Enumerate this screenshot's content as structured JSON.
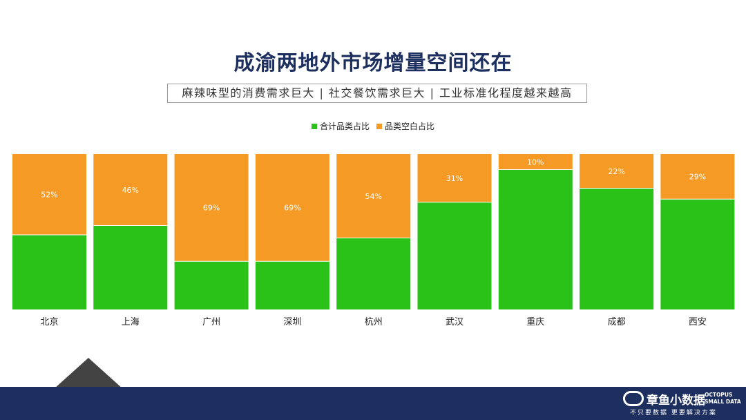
{
  "title": "成渝两地外市场增量空间还在",
  "subtitle": "麻辣味型的消费需求巨大 | 社交餐饮需求巨大 | 工业标准化程度越来越高",
  "legend": [
    {
      "label": "合计品类占比",
      "color": "#2ac219"
    },
    {
      "label": "品类空白占比",
      "color": "#f59b25"
    }
  ],
  "chart_data": {
    "type": "bar",
    "stacked": true,
    "categories": [
      "北京",
      "上海",
      "广州",
      "深圳",
      "杭州",
      "武汉",
      "重庆",
      "成都",
      "西安"
    ],
    "series": [
      {
        "name": "合计品类占比",
        "color": "#2ac219",
        "values": [
          48,
          54,
          31,
          31,
          46,
          69,
          90,
          78,
          71
        ]
      },
      {
        "name": "品类空白占比",
        "color": "#f59b25",
        "values": [
          52,
          46,
          69,
          69,
          54,
          31,
          10,
          22,
          29
        ],
        "labels": [
          "52%",
          "46%",
          "69%",
          "69%",
          "54%",
          "31%",
          "10%",
          "22%",
          "29%"
        ]
      }
    ],
    "ylim": [
      0,
      100
    ],
    "legend_position": "top-center",
    "grid": false
  },
  "footer": {
    "logo_name": "章鱼小数据",
    "logo_en": "OCTOPUS\nSMALL DATA",
    "slogan": "不只要数据  更要解决方案"
  }
}
